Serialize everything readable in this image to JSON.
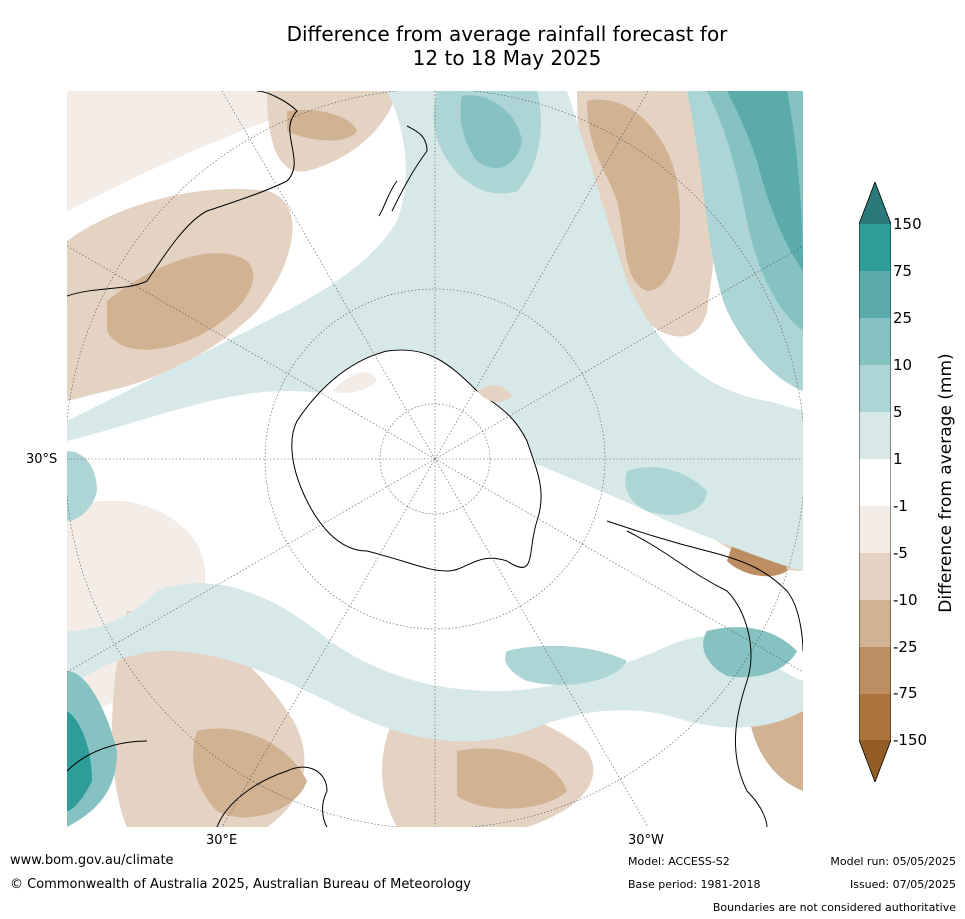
{
  "title": {
    "line1": "Difference from average rainfall forecast for",
    "line2": "12 to 18 May 2025"
  },
  "map": {
    "projection": "south-polar-stereographic",
    "lat_label_left": "30°S",
    "lon_label_1": "30°E",
    "lon_label_2": "30°W",
    "regions_shown": [
      "Antarctica",
      "Australia",
      "New Zealand",
      "South America",
      "Southern Africa"
    ]
  },
  "colorbar": {
    "title": "Difference from average (mm)",
    "ticks": [
      "150",
      "75",
      "25",
      "10",
      "5",
      "1",
      "-1",
      "-5",
      "-10",
      "-25",
      "-75",
      "-150"
    ],
    "colors": {
      "above_150": "#2a7a7c",
      "75_150": "#2e9c99",
      "25_75": "#5aabaa",
      "10_25": "#86c2c1",
      "5_10": "#aed5d5",
      "1_5": "#d6e9e8",
      "neg1_1": "#ffffff",
      "neg5_neg1": "#f4ece6",
      "neg10_neg5": "#e4d2c2",
      "neg25_neg10": "#d1b293",
      "neg75_neg25": "#bc8e62",
      "neg150_neg75": "#ab743e",
      "below_neg150": "#955d26"
    }
  },
  "footer": {
    "website": "www.bom.gov.au/climate",
    "copyright": "© Commonwealth of Australia 2025, Australian Bureau of Meteorology",
    "model": "Model: ACCESS-S2",
    "base_period": "Base period: 1981-2018",
    "model_run": "Model run: 05/05/2025",
    "issued": "Issued: 07/05/2025",
    "disclaimer": "Boundaries are not considered authoritative"
  }
}
